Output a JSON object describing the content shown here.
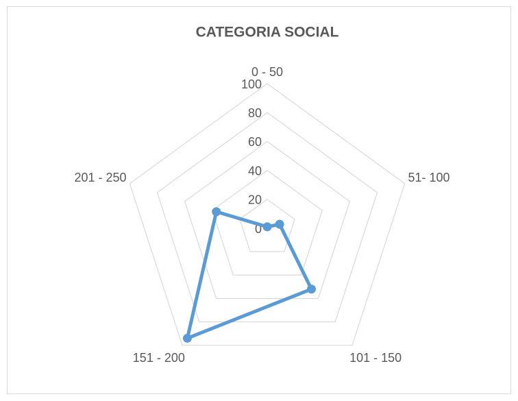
{
  "chart_data": {
    "type": "radar",
    "title": "CATEGORIA SOCIAL",
    "categories": [
      "0 - 50",
      "51- 100",
      "101 - 150",
      "151 - 200",
      "201 - 250"
    ],
    "values": [
      1,
      9,
      52,
      94,
      37
    ],
    "color": "#5b9bd5",
    "ylim": [
      0,
      100
    ],
    "yticks": [
      0,
      20,
      40,
      60,
      80,
      100
    ],
    "grid": true
  }
}
